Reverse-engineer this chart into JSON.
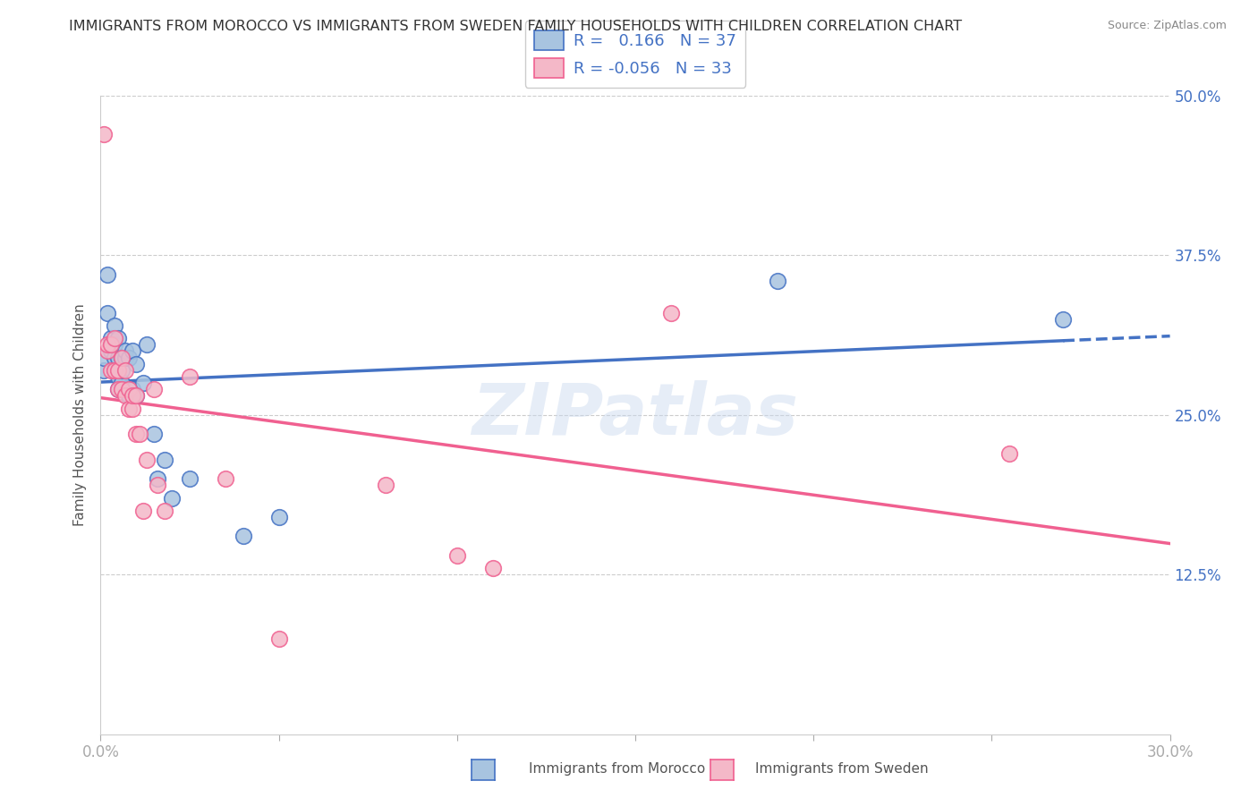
{
  "title": "IMMIGRANTS FROM MOROCCO VS IMMIGRANTS FROM SWEDEN FAMILY HOUSEHOLDS WITH CHILDREN CORRELATION CHART",
  "source": "Source: ZipAtlas.com",
  "xlabel_bottom": "Immigrants from Morocco",
  "xlabel_bottom2": "Immigrants from Sweden",
  "ylabel": "Family Households with Children",
  "xlim": [
    0.0,
    0.3
  ],
  "ylim": [
    0.0,
    0.5
  ],
  "xticks": [
    0.0,
    0.05,
    0.1,
    0.15,
    0.2,
    0.25,
    0.3
  ],
  "xtick_labels": [
    "0.0%",
    "",
    "",
    "",
    "",
    "",
    "30.0%"
  ],
  "yticks": [
    0.0,
    0.125,
    0.25,
    0.375,
    0.5
  ],
  "ytick_labels": [
    "",
    "12.5%",
    "25.0%",
    "37.5%",
    "50.0%"
  ],
  "color_morocco": "#a8c4e0",
  "color_sweden": "#f4b8c8",
  "trendline_morocco": "#4472c4",
  "trendline_sweden": "#f06090",
  "watermark": "ZIPatlas",
  "morocco_x": [
    0.001,
    0.001,
    0.002,
    0.002,
    0.003,
    0.003,
    0.003,
    0.004,
    0.004,
    0.004,
    0.004,
    0.005,
    0.005,
    0.005,
    0.005,
    0.006,
    0.006,
    0.006,
    0.007,
    0.007,
    0.008,
    0.008,
    0.009,
    0.009,
    0.01,
    0.01,
    0.012,
    0.013,
    0.015,
    0.016,
    0.018,
    0.02,
    0.025,
    0.04,
    0.05,
    0.19,
    0.27
  ],
  "morocco_y": [
    0.285,
    0.295,
    0.33,
    0.36,
    0.3,
    0.305,
    0.31,
    0.285,
    0.295,
    0.305,
    0.32,
    0.27,
    0.28,
    0.295,
    0.31,
    0.275,
    0.285,
    0.295,
    0.295,
    0.3,
    0.265,
    0.295,
    0.27,
    0.3,
    0.265,
    0.29,
    0.275,
    0.305,
    0.235,
    0.2,
    0.215,
    0.185,
    0.2,
    0.155,
    0.17,
    0.355,
    0.325
  ],
  "sweden_x": [
    0.001,
    0.002,
    0.002,
    0.003,
    0.003,
    0.004,
    0.004,
    0.005,
    0.005,
    0.006,
    0.006,
    0.007,
    0.007,
    0.008,
    0.008,
    0.009,
    0.009,
    0.01,
    0.01,
    0.011,
    0.012,
    0.013,
    0.015,
    0.016,
    0.018,
    0.025,
    0.035,
    0.05,
    0.08,
    0.1,
    0.11,
    0.16,
    0.255
  ],
  "sweden_y": [
    0.47,
    0.3,
    0.305,
    0.285,
    0.305,
    0.285,
    0.31,
    0.27,
    0.285,
    0.27,
    0.295,
    0.265,
    0.285,
    0.255,
    0.27,
    0.255,
    0.265,
    0.235,
    0.265,
    0.235,
    0.175,
    0.215,
    0.27,
    0.195,
    0.175,
    0.28,
    0.2,
    0.075,
    0.195,
    0.14,
    0.13,
    0.33,
    0.22
  ]
}
